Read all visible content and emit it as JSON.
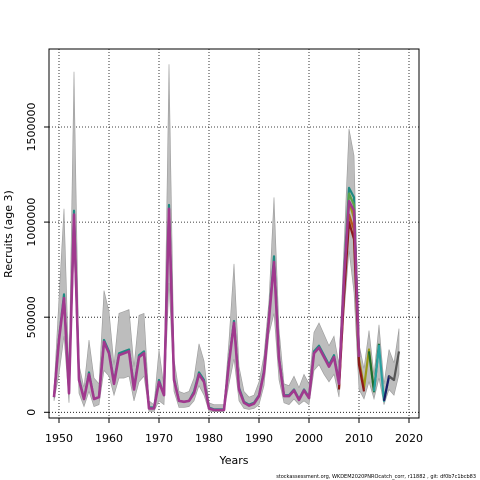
{
  "chart_data": {
    "type": "line",
    "title": "",
    "xlabel": "Years",
    "ylabel": "Recruits (age 3)",
    "xlim": [
      1948,
      2022
    ],
    "ylim": [
      -30000,
      1910000
    ],
    "xticks": [
      1950,
      1960,
      1970,
      1980,
      1990,
      2000,
      2010,
      2020
    ],
    "yticks": [
      0,
      500000,
      1000000,
      1500000
    ],
    "ytick_labels": [
      "0",
      "500000",
      "1000000",
      "1500000"
    ],
    "grid": true,
    "legend": "none",
    "caption": "stockassessment.org, WKDEM2020PNROcatch_corr, r11882 , git: df0b7c1bcb83",
    "band": {
      "color": "#bdbdbd",
      "x": [
        1949,
        1950,
        1951,
        1952,
        1953,
        1954,
        1955,
        1956,
        1957,
        1958,
        1959,
        1960,
        1961,
        1962,
        1963,
        1964,
        1965,
        1966,
        1967,
        1968,
        1969,
        1970,
        1971,
        1972,
        1973,
        1974,
        1975,
        1976,
        1977,
        1978,
        1979,
        1980,
        1981,
        1982,
        1983,
        1984,
        1985,
        1986,
        1987,
        1988,
        1989,
        1990,
        1991,
        1992,
        1993,
        1994,
        1995,
        1996,
        1997,
        1998,
        1999,
        2000,
        2001,
        2002,
        2003,
        2004,
        2005,
        2006,
        2007,
        2008,
        2009,
        2010,
        2011,
        2012,
        2013,
        2014,
        2015,
        2016,
        2017,
        2018
      ],
      "upper": [
        120000,
        600000,
        1070000,
        200000,
        1790000,
        250000,
        130000,
        380000,
        180000,
        150000,
        640000,
        530000,
        250000,
        520000,
        530000,
        540000,
        240000,
        510000,
        520000,
        60000,
        40000,
        330000,
        130000,
        1830000,
        280000,
        110000,
        100000,
        110000,
        180000,
        360000,
        270000,
        50000,
        40000,
        40000,
        40000,
        380000,
        780000,
        240000,
        110000,
        80000,
        90000,
        160000,
        300000,
        590000,
        1130000,
        440000,
        150000,
        140000,
        190000,
        130000,
        200000,
        150000,
        420000,
        470000,
        410000,
        350000,
        400000,
        250000,
        870000,
        1490000,
        1350000,
        360000,
        230000,
        430000,
        200000,
        460000,
        150000,
        330000,
        260000,
        440000
      ],
      "lower": [
        60000,
        200000,
        400000,
        50000,
        850000,
        100000,
        30000,
        110000,
        30000,
        40000,
        220000,
        190000,
        90000,
        180000,
        180000,
        190000,
        60000,
        160000,
        190000,
        5000,
        5000,
        60000,
        40000,
        680000,
        110000,
        25000,
        25000,
        30000,
        60000,
        140000,
        90000,
        5000,
        3000,
        3000,
        3000,
        150000,
        280000,
        60000,
        20000,
        15000,
        20000,
        40000,
        140000,
        410000,
        520000,
        170000,
        50000,
        40000,
        70000,
        40000,
        60000,
        40000,
        220000,
        250000,
        200000,
        160000,
        200000,
        80000,
        520000,
        850000,
        630000,
        120000,
        70000,
        160000,
        70000,
        180000,
        40000,
        120000,
        90000,
        200000
      ]
    },
    "series": [
      {
        "color": "#1f8a82",
        "x": [
          1949,
          1950,
          1951,
          1952,
          1953,
          1954,
          1955,
          1956,
          1957,
          1958,
          1959,
          1960,
          1961,
          1962,
          1963,
          1964,
          1965,
          1966,
          1967,
          1968,
          1969,
          1970,
          1971,
          1972,
          1973,
          1974,
          1975,
          1976,
          1977,
          1978,
          1979,
          1980,
          1981,
          1982,
          1983,
          1984,
          1985,
          1986,
          1987,
          1988,
          1989,
          1990,
          1991,
          1992,
          1993,
          1994,
          1995,
          1996,
          1997,
          1998,
          1999,
          2000,
          2001,
          2002,
          2003,
          2004,
          2005,
          2006,
          2007,
          2008,
          2009,
          2010
        ],
        "values": [
          80000,
          390000,
          620000,
          110000,
          1060000,
          180000,
          70000,
          210000,
          70000,
          80000,
          380000,
          320000,
          160000,
          310000,
          320000,
          330000,
          130000,
          300000,
          320000,
          25000,
          25000,
          170000,
          90000,
          1090000,
          180000,
          60000,
          55000,
          60000,
          110000,
          210000,
          170000,
          25000,
          15000,
          15000,
          15000,
          270000,
          480000,
          130000,
          55000,
          40000,
          50000,
          90000,
          220000,
          500000,
          820000,
          290000,
          90000,
          90000,
          120000,
          70000,
          120000,
          80000,
          320000,
          350000,
          300000,
          250000,
          300000,
          160000,
          720000,
          1180000,
          1130000,
          310000
        ]
      },
      {
        "color": "#5aa34a",
        "x": [
          2006,
          2007,
          2008,
          2009,
          2010
        ],
        "values": [
          150000,
          700000,
          1150000,
          1090000,
          300000
        ]
      },
      {
        "color": "#9a9a18",
        "x": [
          2006,
          2007,
          2008,
          2009,
          2010,
          2011,
          2012,
          2013
        ],
        "values": [
          140000,
          670000,
          1110000,
          1020000,
          280000,
          130000,
          330000,
          110000
        ]
      },
      {
        "color": "#b35b18",
        "x": [
          2006,
          2007,
          2008,
          2009,
          2010,
          2011
        ],
        "values": [
          130000,
          640000,
          1040000,
          960000,
          260000,
          120000
        ]
      },
      {
        "color": "#8a1a1a",
        "x": [
          2006,
          2007,
          2008,
          2009,
          2010,
          2011
        ],
        "values": [
          120000,
          610000,
          1000000,
          910000,
          250000,
          110000
        ]
      },
      {
        "color": "#1d6e2e",
        "x": [
          2012,
          2013,
          2014
        ],
        "values": [
          320000,
          110000,
          360000
        ]
      },
      {
        "color": "#2aa0a0",
        "x": [
          2013,
          2014,
          2015,
          2016
        ],
        "values": [
          110000,
          350000,
          60000,
          190000
        ]
      },
      {
        "color": "#1b1b66",
        "x": [
          2015,
          2016,
          2017
        ],
        "values": [
          60000,
          190000,
          170000
        ]
      },
      {
        "color": "#555555",
        "x": [
          2016,
          2017,
          2018
        ],
        "values": [
          190000,
          170000,
          320000
        ]
      },
      {
        "color": "#a0398e",
        "x": [
          1949,
          1950,
          1951,
          1952,
          1953,
          1954,
          1955,
          1956,
          1957,
          1958,
          1959,
          1960,
          1961,
          1962,
          1963,
          1964,
          1965,
          1966,
          1967,
          1968,
          1969,
          1970,
          1971,
          1972,
          1973,
          1974,
          1975,
          1976,
          1977,
          1978,
          1979,
          1980,
          1981,
          1982,
          1983,
          1984,
          1985,
          1986,
          1987,
          1988,
          1989,
          1990,
          1991,
          1992,
          1993,
          1994,
          1995,
          1996,
          1997,
          1998,
          1999,
          2000,
          2001,
          2002,
          2003,
          2004,
          2005,
          2006,
          2007,
          2008,
          2009,
          2010
        ],
        "values": [
          80000,
          380000,
          600000,
          100000,
          1040000,
          170000,
          70000,
          200000,
          70000,
          80000,
          370000,
          310000,
          150000,
          300000,
          310000,
          320000,
          120000,
          290000,
          310000,
          20000,
          20000,
          160000,
          90000,
          1070000,
          170000,
          60000,
          55000,
          60000,
          100000,
          200000,
          160000,
          20000,
          12000,
          12000,
          12000,
          260000,
          470000,
          120000,
          50000,
          35000,
          45000,
          85000,
          210000,
          490000,
          790000,
          280000,
          85000,
          85000,
          115000,
          65000,
          115000,
          75000,
          310000,
          340000,
          290000,
          240000,
          290000,
          150000,
          700000,
          1110000,
          1060000,
          290000
        ]
      }
    ]
  }
}
